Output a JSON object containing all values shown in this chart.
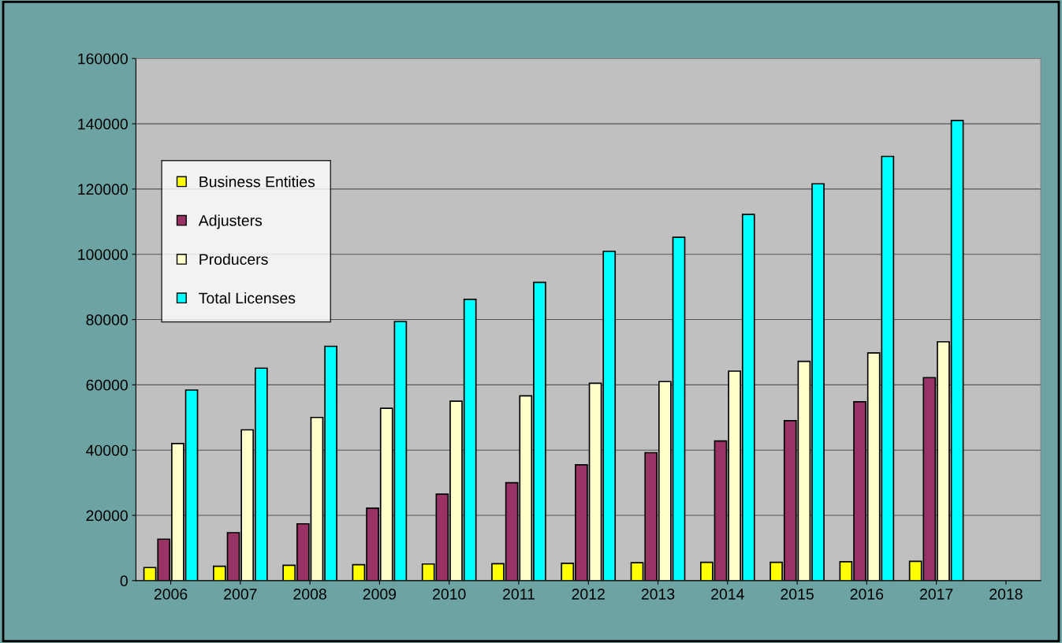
{
  "chart_data": {
    "type": "bar",
    "categories": [
      "2006",
      "2007",
      "2008",
      "2009",
      "2010",
      "2011",
      "2012",
      "2013",
      "2014",
      "2015",
      "2016",
      "2017",
      "2018"
    ],
    "series": [
      {
        "name": "Business Entities",
        "color": "#ffff00",
        "values": [
          4000,
          4400,
          4700,
          4900,
          5100,
          5200,
          5300,
          5500,
          5600,
          5600,
          5800,
          5900,
          null
        ]
      },
      {
        "name": "Adjusters",
        "color": "#993366",
        "values": [
          12700,
          14700,
          17400,
          22200,
          26500,
          30000,
          35500,
          39200,
          42800,
          49000,
          54800,
          62200,
          null
        ]
      },
      {
        "name": "Producers",
        "color": "#ffffcc",
        "values": [
          42000,
          46200,
          50000,
          52800,
          55000,
          56600,
          60500,
          61000,
          64200,
          67200,
          69800,
          73200,
          null
        ]
      },
      {
        "name": "Total Licenses",
        "color": "#00ffff",
        "values": [
          58400,
          65100,
          71800,
          79400,
          86200,
          91400,
          100900,
          105200,
          112200,
          121600,
          130000,
          141000,
          null
        ]
      }
    ],
    "ylim": [
      0,
      160000
    ],
    "yticks": [
      0,
      20000,
      40000,
      60000,
      80000,
      100000,
      120000,
      140000,
      160000
    ],
    "grid": "y",
    "legend": "left"
  }
}
